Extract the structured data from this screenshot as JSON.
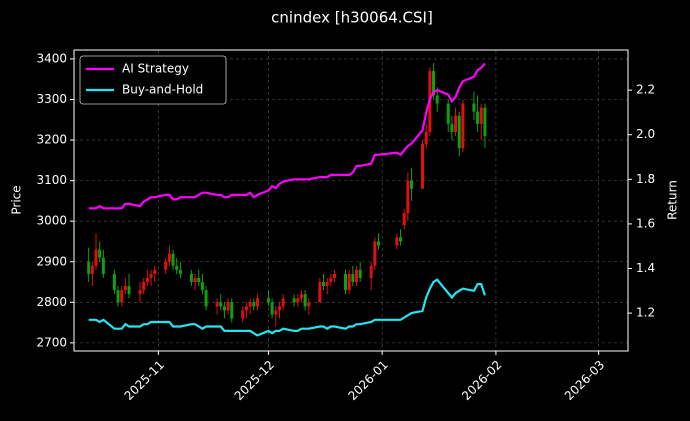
{
  "chart_data": {
    "type": "candlestick",
    "title": "cnindex [h30064.CSI]",
    "ylabel": "Price",
    "y2label": "Return",
    "x": [
      "2025-10-13",
      "2025-10-14",
      "2025-10-15",
      "2025-10-16",
      "2025-10-17",
      "2025-10-20",
      "2025-10-21",
      "2025-10-22",
      "2025-10-23",
      "2025-10-24",
      "2025-10-27",
      "2025-10-28",
      "2025-10-29",
      "2025-10-30",
      "2025-10-31",
      "2025-11-03",
      "2025-11-04",
      "2025-11-05",
      "2025-11-06",
      "2025-11-07",
      "2025-11-10",
      "2025-11-11",
      "2025-11-12",
      "2025-11-13",
      "2025-11-14",
      "2025-11-17",
      "2025-11-18",
      "2025-11-19",
      "2025-11-20",
      "2025-11-21",
      "2025-11-24",
      "2025-11-25",
      "2025-11-26",
      "2025-11-27",
      "2025-11-28",
      "2025-12-01",
      "2025-12-02",
      "2025-12-03",
      "2025-12-04",
      "2025-12-05",
      "2025-12-08",
      "2025-12-09",
      "2025-12-10",
      "2025-12-11",
      "2025-12-12",
      "2025-12-15",
      "2025-12-16",
      "2025-12-17",
      "2025-12-18",
      "2025-12-19",
      "2025-12-22",
      "2025-12-23",
      "2025-12-24",
      "2025-12-25",
      "2025-12-26",
      "2025-12-29",
      "2025-12-30",
      "2025-12-31",
      "2026-01-05",
      "2026-01-06",
      "2026-01-07",
      "2026-01-08",
      "2026-01-09",
      "2026-01-12",
      "2026-01-13",
      "2026-01-14",
      "2026-01-15",
      "2026-01-16",
      "2026-01-19",
      "2026-01-20",
      "2026-01-21",
      "2026-01-22",
      "2026-01-23",
      "2026-01-26",
      "2026-01-27",
      "2026-01-28",
      "2026-01-29"
    ],
    "open": [
      2900,
      2870,
      2890,
      2930,
      2910,
      2870,
      2830,
      2800,
      2830,
      2840,
      2820,
      2830,
      2850,
      2860,
      2870,
      2880,
      2900,
      2920,
      2890,
      2880,
      2870,
      2850,
      2860,
      2850,
      2830,
      2790,
      2800,
      2790,
      2780,
      2800,
      2760,
      2780,
      2790,
      2800,
      2790,
      2810,
      2800,
      2770,
      2780,
      2790,
      2810,
      2800,
      2810,
      2820,
      2790,
      2800,
      2850,
      2840,
      2850,
      2860,
      2870,
      2830,
      2870,
      2850,
      2880,
      2860,
      2890,
      2950,
      2940,
      2960,
      2990,
      3020,
      3100,
      3080,
      3190,
      3220,
      3370,
      3310,
      3290,
      3240,
      3220,
      3260,
      3180,
      3290,
      3270,
      3240,
      3280
    ],
    "high": [
      2935,
      2900,
      2970,
      2950,
      2930,
      2880,
      2840,
      2840,
      2860,
      2870,
      2850,
      2860,
      2880,
      2880,
      2890,
      2910,
      2940,
      2930,
      2910,
      2900,
      2880,
      2870,
      2880,
      2870,
      2840,
      2810,
      2820,
      2800,
      2810,
      2810,
      2790,
      2800,
      2810,
      2810,
      2820,
      2830,
      2810,
      2790,
      2800,
      2820,
      2820,
      2820,
      2830,
      2830,
      2810,
      2860,
      2870,
      2860,
      2870,
      2880,
      2880,
      2880,
      2890,
      2890,
      2900,
      2900,
      2960,
      2970,
      2970,
      2980,
      3030,
      3120,
      3130,
      3200,
      3240,
      3380,
      3390,
      3330,
      3300,
      3260,
      3280,
      3270,
      3300,
      3320,
      3310,
      3290,
      3290
    ],
    "low": [
      2850,
      2840,
      2880,
      2900,
      2860,
      2820,
      2790,
      2790,
      2820,
      2810,
      2800,
      2820,
      2840,
      2840,
      2850,
      2870,
      2890,
      2880,
      2870,
      2860,
      2840,
      2830,
      2840,
      2820,
      2780,
      2770,
      2780,
      2760,
      2770,
      2750,
      2750,
      2760,
      2770,
      2780,
      2780,
      2790,
      2760,
      2740,
      2760,
      2780,
      2790,
      2790,
      2800,
      2780,
      2770,
      2800,
      2830,
      2820,
      2840,
      2850,
      2820,
      2820,
      2840,
      2840,
      2850,
      2830,
      2880,
      2930,
      2930,
      2940,
      2980,
      3000,
      3050,
      3080,
      3180,
      3210,
      3300,
      3270,
      3220,
      3200,
      3210,
      3160,
      3170,
      3250,
      3220,
      3200,
      3180
    ],
    "close": [
      2870,
      2890,
      2930,
      2910,
      2870,
      2830,
      2800,
      2830,
      2840,
      2820,
      2830,
      2850,
      2860,
      2870,
      2880,
      2900,
      2920,
      2890,
      2880,
      2870,
      2850,
      2860,
      2850,
      2830,
      2790,
      2800,
      2790,
      2780,
      2800,
      2760,
      2780,
      2790,
      2800,
      2790,
      2810,
      2800,
      2770,
      2780,
      2790,
      2810,
      2800,
      2810,
      2820,
      2790,
      2800,
      2850,
      2840,
      2850,
      2860,
      2870,
      2830,
      2870,
      2850,
      2880,
      2860,
      2890,
      2950,
      2940,
      2960,
      2950,
      3020,
      3100,
      3080,
      3190,
      3220,
      3370,
      3310,
      3290,
      3240,
      3220,
      3260,
      3180,
      3290,
      3270,
      3240,
      3280,
      3210
    ],
    "up_color": "#e01010",
    "down_color": "#10a010",
    "series": [
      {
        "name": "AI Strategy",
        "color": "#ff00ff",
        "axis": "y2",
        "values": [
          1.67,
          1.67,
          1.67,
          1.68,
          1.67,
          1.67,
          1.67,
          1.67,
          1.69,
          1.69,
          1.68,
          1.7,
          1.71,
          1.72,
          1.72,
          1.73,
          1.73,
          1.71,
          1.71,
          1.72,
          1.72,
          1.72,
          1.73,
          1.74,
          1.74,
          1.73,
          1.73,
          1.72,
          1.72,
          1.73,
          1.73,
          1.73,
          1.74,
          1.72,
          1.73,
          1.75,
          1.77,
          1.76,
          1.78,
          1.79,
          1.8,
          1.8,
          1.8,
          1.8,
          1.8,
          1.81,
          1.81,
          1.81,
          1.82,
          1.82,
          1.82,
          1.82,
          1.83,
          1.86,
          1.86,
          1.87,
          1.91,
          1.91,
          1.92,
          1.91,
          1.93,
          1.95,
          1.96,
          2.02,
          2.1,
          2.16,
          2.19,
          2.2,
          2.18,
          2.15,
          2.17,
          2.21,
          2.24,
          2.26,
          2.29,
          2.3,
          2.32
        ]
      },
      {
        "name": "Buy-and-Hold",
        "color": "#22e5f0",
        "axis": "y2",
        "values": [
          1.17,
          1.17,
          1.17,
          1.16,
          1.17,
          1.13,
          1.13,
          1.13,
          1.15,
          1.14,
          1.14,
          1.15,
          1.15,
          1.16,
          1.16,
          1.16,
          1.16,
          1.14,
          1.14,
          1.14,
          1.15,
          1.15,
          1.14,
          1.13,
          1.14,
          1.14,
          1.14,
          1.12,
          1.12,
          1.12,
          1.12,
          1.12,
          1.12,
          1.11,
          1.1,
          1.12,
          1.11,
          1.12,
          1.12,
          1.13,
          1.12,
          1.12,
          1.13,
          1.13,
          1.13,
          1.14,
          1.14,
          1.13,
          1.14,
          1.14,
          1.13,
          1.14,
          1.14,
          1.15,
          1.15,
          1.16,
          1.17,
          1.17,
          1.17,
          1.17,
          1.18,
          1.19,
          1.2,
          1.21,
          1.27,
          1.31,
          1.34,
          1.35,
          1.29,
          1.27,
          1.29,
          1.3,
          1.31,
          1.3,
          1.33,
          1.33,
          1.28
        ]
      }
    ],
    "xlim": [
      "2025-10-09",
      "2026-03-09"
    ],
    "xticks": [
      {
        "value": "2025-11-01",
        "label": "2025-11"
      },
      {
        "value": "2025-12-01",
        "label": "2025-12"
      },
      {
        "value": "2026-01-01",
        "label": "2026-01"
      },
      {
        "value": "2026-02-01",
        "label": "2026-02"
      },
      {
        "value": "2026-03-01",
        "label": "2026-03"
      }
    ],
    "ylim": [
      2680,
      3422
    ],
    "yticks": [
      2700,
      2800,
      2900,
      3000,
      3100,
      3200,
      3300,
      3400
    ],
    "y2lim": [
      1.03,
      2.38
    ],
    "y2ticks": [
      1.2,
      1.4,
      1.6,
      1.8,
      {
        "value": 2,
        "label": "2.0"
      },
      2.2
    ],
    "grid": true,
    "legend": "upper left"
  }
}
